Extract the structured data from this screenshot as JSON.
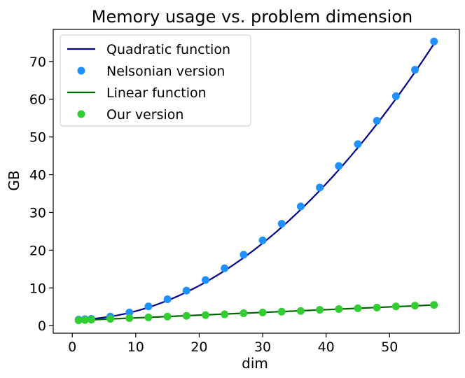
{
  "chart_data": {
    "type": "scatter",
    "title": "Memory usage vs. problem dimension",
    "xlabel": "dim",
    "ylabel": "GB",
    "xlim": [
      -3,
      61
    ],
    "ylim": [
      -2,
      78.5
    ],
    "x_ticks": [
      0,
      10,
      20,
      30,
      40,
      50
    ],
    "y_ticks": [
      0,
      10,
      20,
      30,
      40,
      50,
      60,
      70
    ],
    "grid": false,
    "legend_position": "top-left",
    "series": [
      {
        "name": "Quadratic function",
        "kind": "line",
        "color": "#00008b",
        "function": "quadratic",
        "coefficients": {
          "a": 0.0225,
          "b": 0.0,
          "c": 1.6
        },
        "x_range": [
          1,
          57
        ]
      },
      {
        "name": "Nelsonian version",
        "kind": "scatter",
        "color": "#1e90ff",
        "x": [
          1,
          2,
          3,
          6,
          9,
          12,
          15,
          18,
          21,
          24,
          27,
          30,
          33,
          36,
          39,
          42,
          45,
          48,
          51,
          54,
          57
        ],
        "y": [
          1.6,
          1.7,
          1.8,
          2.4,
          3.5,
          5.1,
          7.0,
          9.3,
          12.1,
          15.2,
          18.8,
          22.6,
          27.0,
          31.6,
          36.6,
          42.3,
          48.1,
          54.3,
          60.8,
          67.8,
          75.3
        ]
      },
      {
        "name": "Linear function",
        "kind": "line",
        "color": "#006400",
        "function": "linear",
        "coefficients": {
          "a": 0.0727,
          "b": 1.33
        },
        "x_range": [
          1,
          57
        ]
      },
      {
        "name": "Our version",
        "kind": "scatter",
        "color": "#32cd32",
        "x": [
          1,
          2,
          3,
          6,
          9,
          12,
          15,
          18,
          21,
          24,
          27,
          30,
          33,
          36,
          39,
          42,
          45,
          48,
          51,
          54,
          57
        ],
        "y": [
          1.4,
          1.5,
          1.6,
          1.8,
          2.0,
          2.2,
          2.4,
          2.6,
          2.8,
          3.0,
          3.3,
          3.5,
          3.7,
          3.9,
          4.2,
          4.4,
          4.6,
          4.8,
          5.1,
          5.3,
          5.5
        ]
      }
    ]
  }
}
